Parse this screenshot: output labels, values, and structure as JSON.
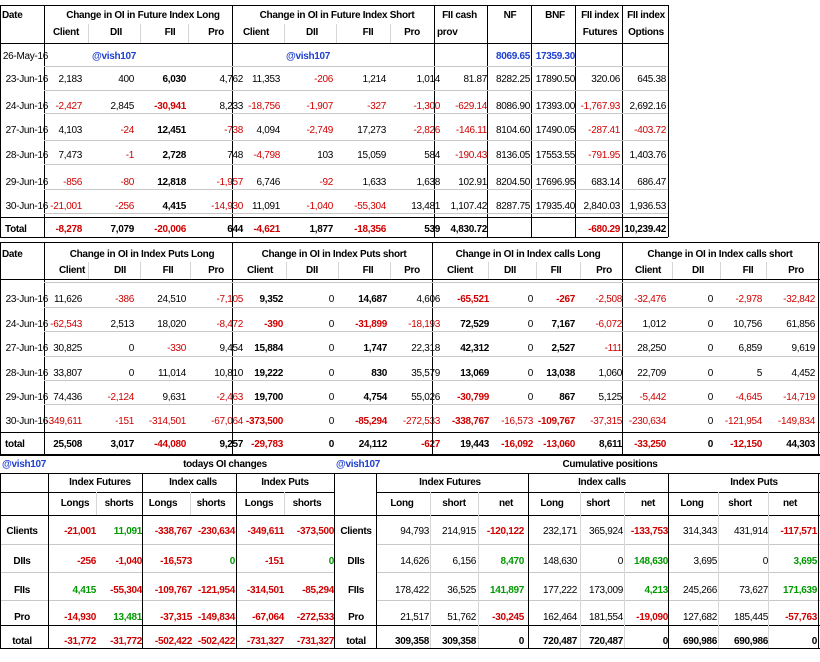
{
  "section1": {
    "headers": {
      "date": "Date",
      "fut_long": "Change in OI in Future Index Long",
      "fut_short": "Change in OI in Future Index Short",
      "fii_cash": [
        "FII cash",
        "prov"
      ],
      "nf": "NF",
      "bnf": "BNF",
      "fii_fut": [
        "FII index",
        "Futures"
      ],
      "fii_opt": [
        "FII index",
        "Options"
      ],
      "sub": [
        "Client",
        "DII",
        "FII",
        "Pro"
      ]
    },
    "watermark": "@vish107",
    "rows": [
      {
        "date": "26-May-16",
        "nf": "8069.65",
        "bnf": "17359.30"
      },
      {
        "date": "23-Jun-16",
        "vals": [
          "2,183",
          "400",
          "6,030",
          "4,762",
          "11,353",
          "-206",
          "1,214",
          "1,014",
          "81.87",
          "8282.25",
          "17890.50",
          "320.06",
          "645.38"
        ]
      },
      {
        "date": "24-Jun-16",
        "vals": [
          "-2,427",
          "2,845",
          "-30,941",
          "8,233",
          "-18,756",
          "-1,907",
          "-327",
          "-1,300",
          "-629.14",
          "8086.90",
          "17393.00",
          "-1,767.93",
          "2,692.16"
        ]
      },
      {
        "date": "27-Jun-16",
        "vals": [
          "4,103",
          "-24",
          "12,451",
          "-738",
          "4,094",
          "-2,749",
          "17,273",
          "-2,826",
          "-146.11",
          "8104.60",
          "17490.05",
          "-287.41",
          "-403.72"
        ]
      },
      {
        "date": "28-Jun-16",
        "vals": [
          "7,473",
          "-1",
          "2,728",
          "748",
          "-4,798",
          "103",
          "15,059",
          "584",
          "-190.43",
          "8136.05",
          "17553.55",
          "-791.95",
          "1,403.76"
        ]
      },
      {
        "date": "29-Jun-16",
        "vals": [
          "-856",
          "-80",
          "12,818",
          "-1,957",
          "6,746",
          "-92",
          "1,633",
          "1,638",
          "102.91",
          "8204.50",
          "17696.95",
          "683.14",
          "686.47"
        ]
      },
      {
        "date": "30-Jun-16",
        "vals": [
          "-21,001",
          "-256",
          "4,415",
          "-14,930",
          "11,091",
          "-1,040",
          "-55,304",
          "13,481",
          "1,107.42",
          "8287.75",
          "17935.40",
          "2,840.03",
          "1,936.53"
        ]
      }
    ],
    "total": {
      "label": "Total",
      "vals": [
        "-8,278",
        "7,079",
        "-20,006",
        "644",
        "-4,621",
        "1,877",
        "-18,356",
        "539",
        "4,830.72",
        "",
        "",
        "-680.29",
        "10,239.42"
      ]
    }
  },
  "section2": {
    "headers": {
      "date": "Date",
      "puts_long": "Change in OI in Index Puts Long",
      "puts_short": "Change in OI in Index Puts short",
      "calls_long": "Change in OI in Index calls Long",
      "calls_short": "Change in OI in Index calls short",
      "sub": [
        "Client",
        "DII",
        "FII",
        "Pro"
      ]
    },
    "rows": [
      {
        "date": "23-Jun-16",
        "vals": [
          "11,626",
          "-386",
          "24,510",
          "-7,105",
          "9,352",
          "0",
          "14,687",
          "4,606",
          "-65,521",
          "0",
          "-267",
          "-2,508",
          "-32,476",
          "0",
          "-2,978",
          "-32,842"
        ]
      },
      {
        "date": "24-Jun-16",
        "vals": [
          "-62,543",
          "2,513",
          "18,020",
          "-8,472",
          "-390",
          "0",
          "-31,899",
          "-18,193",
          "72,529",
          "0",
          "7,167",
          "-6,072",
          "1,012",
          "0",
          "10,756",
          "61,856"
        ]
      },
      {
        "date": "27-Jun-16",
        "vals": [
          "30,825",
          "0",
          "-330",
          "9,454",
          "15,884",
          "0",
          "1,747",
          "22,318",
          "42,312",
          "0",
          "2,527",
          "-111",
          "28,250",
          "0",
          "6,859",
          "9,619"
        ]
      },
      {
        "date": "28-Jun-16",
        "vals": [
          "33,807",
          "0",
          "11,014",
          "10,810",
          "19,222",
          "0",
          "830",
          "35,579",
          "13,069",
          "0",
          "13,038",
          "1,060",
          "22,709",
          "0",
          "5",
          "4,452"
        ]
      },
      {
        "date": "29-Jun-16",
        "vals": [
          "74,436",
          "-2,124",
          "9,631",
          "-2,463",
          "19,700",
          "0",
          "4,754",
          "55,026",
          "-30,799",
          "0",
          "867",
          "5,125",
          "-5,442",
          "0",
          "-4,645",
          "-14,719"
        ]
      },
      {
        "date": "30-Jun-16",
        "vals": [
          "-349,611",
          "-151",
          "-314,501",
          "-67,064",
          "-373,500",
          "0",
          "-85,294",
          "-272,533",
          "-338,767",
          "-16,573",
          "-109,767",
          "-37,315",
          "-230,634",
          "0",
          "-121,954",
          "-149,834"
        ]
      }
    ],
    "total": {
      "label": "total",
      "vals": [
        "25,508",
        "3,017",
        "-44,080",
        "9,257",
        "-29,783",
        "0",
        "24,112",
        "-627",
        "19,443",
        "-16,092",
        "-13,060",
        "8,611",
        "-33,250",
        "0",
        "-12,150",
        "44,303"
      ]
    }
  },
  "section3": {
    "watermark": "@vish107",
    "title": "todays OI changes",
    "groups": [
      "Index Futures",
      "Index calls",
      "Index Puts"
    ],
    "sub": [
      "Longs",
      "shorts",
      "Longs",
      "shorts",
      "Longs",
      "shorts"
    ],
    "rows": [
      {
        "label": "Clients",
        "vals": [
          "-21,001",
          "11,091",
          "-338,767",
          "-230,634",
          "-349,611",
          "-373,500"
        ]
      },
      {
        "label": "DIIs",
        "vals": [
          "-256",
          "-1,040",
          "-16,573",
          "0",
          "-151",
          "0"
        ]
      },
      {
        "label": "FIIs",
        "vals": [
          "4,415",
          "-55,304",
          "-109,767",
          "-121,954",
          "-314,501",
          "-85,294"
        ]
      },
      {
        "label": "Pro",
        "vals": [
          "-14,930",
          "13,481",
          "-37,315",
          "-149,834",
          "-67,064",
          "-272,533"
        ]
      },
      {
        "label": "total",
        "vals": [
          "-31,772",
          "-31,772",
          "-502,422",
          "-502,422",
          "-731,327",
          "-731,327"
        ]
      }
    ]
  },
  "section4": {
    "watermark": "@vish107",
    "title": "Cumulative positions",
    "groups": [
      "Index Futures",
      "Index calls",
      "Index Puts"
    ],
    "sub": [
      "Long",
      "short",
      "net",
      "Long",
      "short",
      "net",
      "Long",
      "short",
      "net"
    ],
    "rows": [
      {
        "label": "Clients",
        "vals": [
          "94,793",
          "214,915",
          "-120,122",
          "232,171",
          "365,924",
          "-133,753",
          "314,343",
          "431,914",
          "-117,571"
        ]
      },
      {
        "label": "DIIs",
        "vals": [
          "14,626",
          "6,156",
          "8,470",
          "148,630",
          "0",
          "148,630",
          "3,695",
          "0",
          "3,695"
        ]
      },
      {
        "label": "FIIs",
        "vals": [
          "178,422",
          "36,525",
          "141,897",
          "177,222",
          "173,009",
          "4,213",
          "245,266",
          "73,627",
          "171,639"
        ]
      },
      {
        "label": "Pro",
        "vals": [
          "21,517",
          "51,762",
          "-30,245",
          "162,464",
          "181,554",
          "-19,090",
          "127,682",
          "185,445",
          "-57,763"
        ]
      },
      {
        "label": "total",
        "vals": [
          "309,358",
          "309,358",
          "0",
          "720,487",
          "720,487",
          "0",
          "690,986",
          "690,986",
          "0"
        ]
      }
    ]
  },
  "colors": {
    "negative": "#d00000",
    "positive": "#009a00",
    "handle": "#1f40d0",
    "grid": "#000000"
  }
}
